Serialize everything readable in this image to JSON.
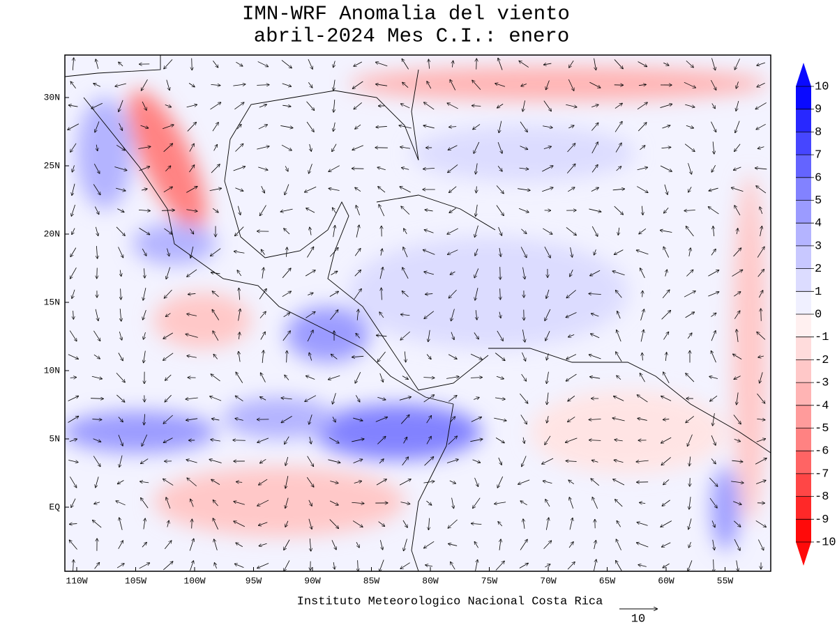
{
  "title": [
    "IMN-WRF Anomalia del viento",
    "abril-2024 Mes C.I.: enero"
  ],
  "map": {
    "lat_labels": [
      "30N",
      "25N",
      "20N",
      "15N",
      "10N",
      "5N",
      "EQ"
    ],
    "lon_labels": [
      "110W",
      "105W",
      "100W",
      "95W",
      "90W",
      "85W",
      "80W",
      "75W",
      "70W",
      "65W",
      "60W",
      "55W"
    ]
  },
  "colorbar": {
    "ticks": [
      10,
      9,
      8,
      7,
      6,
      5,
      4,
      3,
      2,
      1,
      0,
      -1,
      -2,
      -3,
      -4,
      -5,
      -6,
      -7,
      -8,
      -9,
      -10
    ],
    "colors": [
      "#0a0aff",
      "#2828ff",
      "#4646ff",
      "#6464ff",
      "#8282ff",
      "#9b9bff",
      "#b4b4ff",
      "#c8c8ff",
      "#dcdcff",
      "#f0f0ff",
      "#fff0f0",
      "#ffdcdc",
      "#ffc8c8",
      "#ffb4b4",
      "#ff9b9b",
      "#ff8282",
      "#ff6464",
      "#ff4646",
      "#ff2828",
      "#ff0a0a"
    ]
  },
  "footer": "Instituto Meteorologico Nacional Costa Rica",
  "reference_vector": "10"
}
